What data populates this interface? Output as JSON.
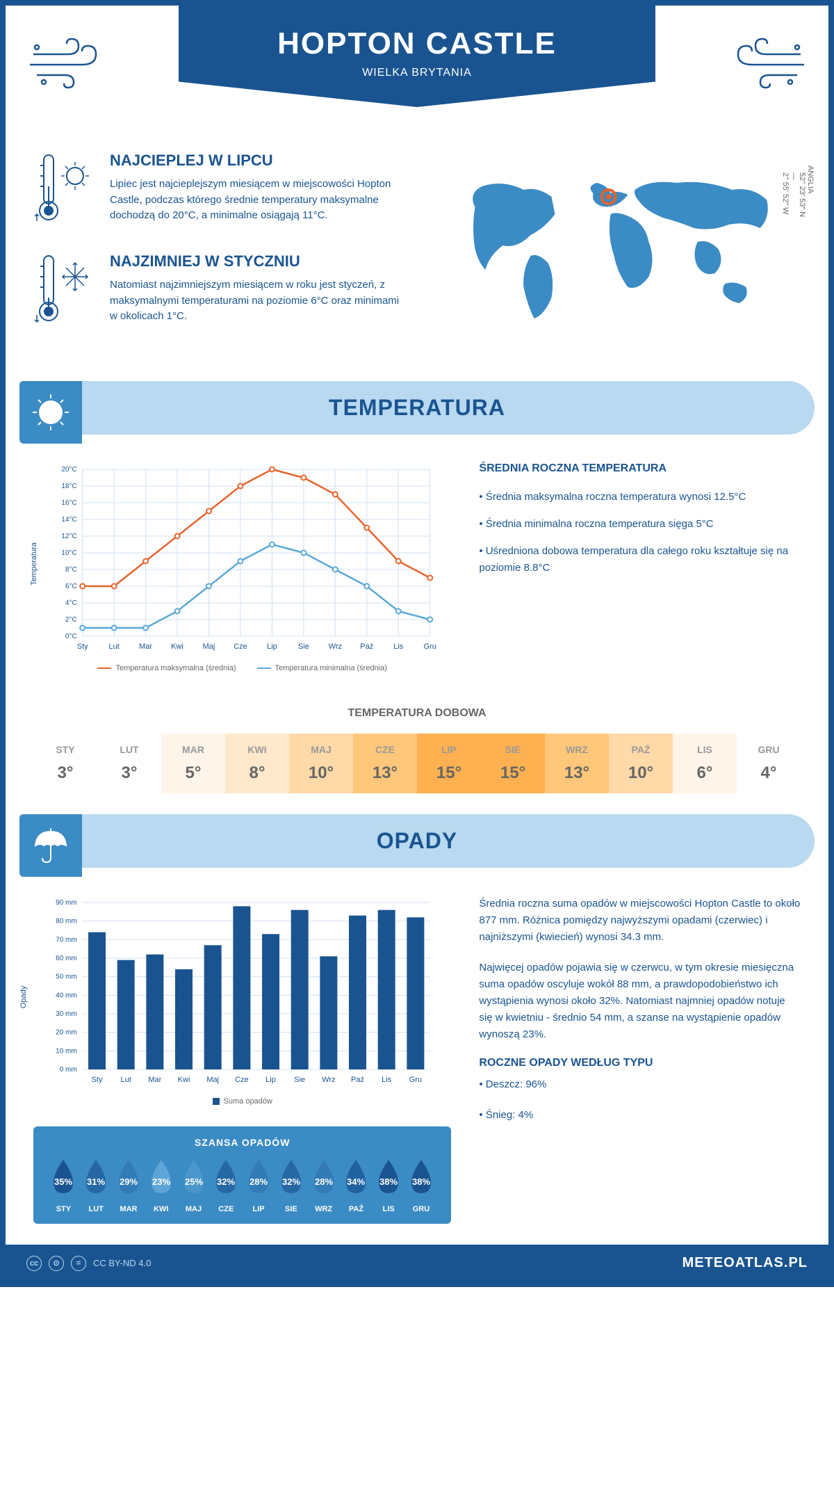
{
  "header": {
    "title": "HOPTON CASTLE",
    "subtitle": "WIELKA BRYTANIA"
  },
  "coords": {
    "region": "ANGLIA",
    "lat": "52° 23' 53\" N",
    "lon": "2° 55' 52\" W"
  },
  "warmest": {
    "title": "NAJCIEPLEJ W LIPCU",
    "text": "Lipiec jest najcieplejszym miesiącem w miejscowości Hopton Castle, podczas którego średnie temperatury maksymalne dochodzą do 20°C, a minimalne osiągają 11°C."
  },
  "coldest": {
    "title": "NAJZIMNIEJ W STYCZNIU",
    "text": "Natomiast najzimniejszym miesiącem w roku jest styczeń, z maksymalnymi temperaturami na poziomie 6°C oraz minimami w okolicach 1°C."
  },
  "sections": {
    "temperature": "TEMPERATURA",
    "precipitation": "OPADY"
  },
  "temp_chart": {
    "months": [
      "Sty",
      "Lut",
      "Mar",
      "Kwi",
      "Maj",
      "Cze",
      "Lip",
      "Sie",
      "Wrz",
      "Paź",
      "Lis",
      "Gru"
    ],
    "max_values": [
      6,
      6,
      9,
      12,
      15,
      18,
      20,
      19,
      17,
      13,
      9,
      7
    ],
    "min_values": [
      1,
      1,
      1,
      3,
      6,
      9,
      11,
      10,
      8,
      6,
      3,
      2
    ],
    "max_color": "#e8622c",
    "min_color": "#5aa8d8",
    "grid_color": "#d0e0f0",
    "ylim": [
      0,
      20
    ],
    "ytick_step": 2,
    "y_label": "Temperatura",
    "legend_max": "Temperatura maksymalna (średnia)",
    "legend_min": "Temperatura minimalna (średnia)"
  },
  "temp_info": {
    "title": "ŚREDNIA ROCZNA TEMPERATURA",
    "p1": "• Średnia maksymalna roczna temperatura wynosi 12.5°C",
    "p2": "• Średnia minimalna roczna temperatura sięga 5°C",
    "p3": "• Uśredniona dobowa temperatura dla całego roku kształtuje się na poziomie 8.8°C"
  },
  "daily_temp": {
    "title": "TEMPERATURA DOBOWA",
    "months": [
      "STY",
      "LUT",
      "MAR",
      "KWI",
      "MAJ",
      "CZE",
      "LIP",
      "SIE",
      "WRZ",
      "PAŹ",
      "LIS",
      "GRU"
    ],
    "values": [
      "3°",
      "3°",
      "5°",
      "8°",
      "10°",
      "13°",
      "15°",
      "15°",
      "13°",
      "10°",
      "6°",
      "4°"
    ],
    "colors": [
      "#ffffff",
      "#ffffff",
      "#fff5ea",
      "#ffe8cc",
      "#ffd9a8",
      "#ffc77a",
      "#ffb050",
      "#ffb050",
      "#ffc77a",
      "#ffd9a8",
      "#fff5ea",
      "#ffffff"
    ]
  },
  "precip_chart": {
    "months": [
      "Sty",
      "Lut",
      "Mar",
      "Kwi",
      "Maj",
      "Cze",
      "Lip",
      "Sie",
      "Wrz",
      "Paź",
      "Lis",
      "Gru"
    ],
    "values": [
      74,
      59,
      62,
      54,
      67,
      88,
      73,
      86,
      61,
      83,
      86,
      82
    ],
    "bar_color": "#1a5490",
    "grid_color": "#d0e0f0",
    "ylim": [
      0,
      90
    ],
    "ytick_step": 10,
    "y_label": "Opady",
    "legend": "Suma opadów"
  },
  "precip_info": {
    "p1": "Średnia roczna suma opadów w miejscowości Hopton Castle to około 877 mm. Różnica pomiędzy najwyższymi opadami (czerwiec) i najniższymi (kwiecień) wynosi 34.3 mm.",
    "p2": "Najwięcej opadów pojawia się w czerwcu, w tym okresie miesięczna suma opadów oscyluje wokół 88 mm, a prawdopodobieństwo ich wystąpienia wynosi około 32%. Natomiast najmniej opadów notuje się w kwietniu - średnio 54 mm, a szanse na wystąpienie opadów wynoszą 23%.",
    "type_title": "ROCZNE OPADY WEDŁUG TYPU",
    "rain": "• Deszcz: 96%",
    "snow": "• Śnieg: 4%"
  },
  "chance": {
    "title": "SZANSA OPADÓW",
    "months": [
      "STY",
      "LUT",
      "MAR",
      "KWI",
      "MAJ",
      "CZE",
      "LIP",
      "SIE",
      "WRZ",
      "PAŹ",
      "LIS",
      "GRU"
    ],
    "values": [
      "35%",
      "31%",
      "29%",
      "23%",
      "25%",
      "32%",
      "28%",
      "32%",
      "28%",
      "34%",
      "38%",
      "38%"
    ],
    "colors": [
      "#1a5490",
      "#2668a3",
      "#327bb6",
      "#5ca5d6",
      "#4a96ca",
      "#2668a3",
      "#327bb6",
      "#2668a3",
      "#327bb6",
      "#2061a0",
      "#1a5490",
      "#1a5490"
    ]
  },
  "footer": {
    "license": "CC BY-ND 4.0",
    "site": "METEOATLAS.PL"
  }
}
